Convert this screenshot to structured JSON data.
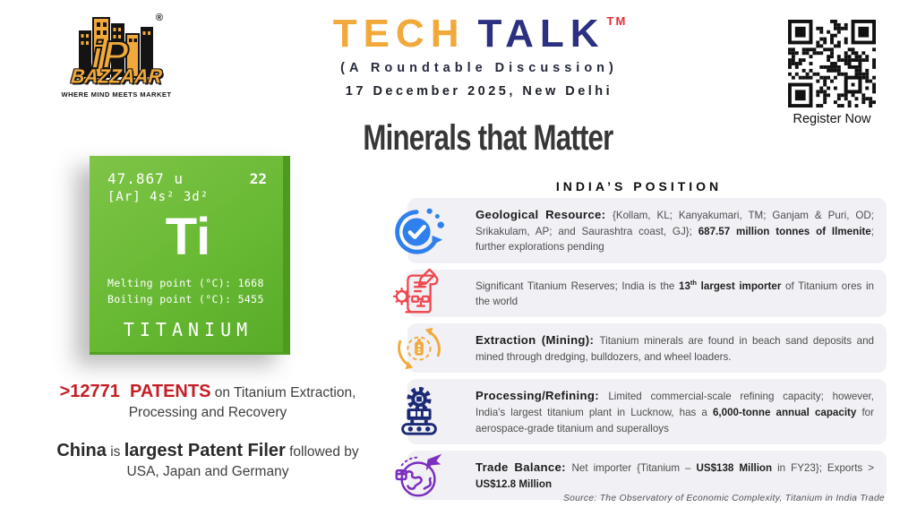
{
  "brand": {
    "prefix": "iP",
    "name": "BAZZAAR",
    "tagline": "WHERE MIND MEETS MARKET",
    "registered": "®"
  },
  "header": {
    "title_word1": "TECH",
    "title_word2": "TALK",
    "trademark": "TM",
    "subtitle": "(A Roundtable Discussion)",
    "dateline": "17 December 2025, New Delhi"
  },
  "register": {
    "label": "Register Now"
  },
  "page_title": "Minerals that Matter",
  "element_card": {
    "atomic_mass": "47.867 u",
    "atomic_number": "22",
    "electron_config": "[Ar] 4s² 3d²",
    "symbol": "Ti",
    "melting_point": "Melting point (°C): 1668",
    "boiling_point": "Boiling point (°C): 5455",
    "name": "TITANIUM"
  },
  "patents": {
    "line1": [
      {
        "t": ">12771  PATENTS",
        "b": true,
        "big": true,
        "red": true
      },
      {
        "t": " on Titanium Extraction,"
      }
    ],
    "line2": "Processing and Recovery",
    "filer1": [
      {
        "t": "China",
        "b": true,
        "big": true
      },
      {
        "t": " is "
      },
      {
        "t": "largest Patent Filer",
        "b": true,
        "big": true
      },
      {
        "t": " followed by"
      }
    ],
    "filer2": "USA, Japan and Germany"
  },
  "position": {
    "heading": "INDIA’S POSITION",
    "rows": [
      {
        "icon": "check-circle",
        "color": "#2F80ED",
        "segments": [
          {
            "t": "Geological Resource: ",
            "lead": true
          },
          {
            "t": "{Kollam, KL; Kanyakumari, TM; Ganjam & Puri, OD; Srikakulam, AP; and Saurashtra coast, GJ}; "
          },
          {
            "t": "687.57 million tonnes of Ilmenite",
            "b": true
          },
          {
            "t": "; further explorations pending"
          }
        ]
      },
      {
        "icon": "patent-scroll",
        "color": "#F0484F",
        "segments": [
          {
            "t": "Significant Titanium Reserves; India is the "
          },
          {
            "t": "13",
            "b": true
          },
          {
            "t": "th",
            "b": true,
            "sup": true
          },
          {
            "t": " largest importer",
            "b": true
          },
          {
            "t": " of Titanium ores in the world"
          }
        ]
      },
      {
        "icon": "mining-cycle",
        "color": "#F2A93B",
        "segments": [
          {
            "t": "Extraction (Mining): ",
            "lead": true
          },
          {
            "t": "Titanium minerals are found in beach sand deposits and mined through dredging, bulldozers, and wheel loaders."
          }
        ]
      },
      {
        "icon": "factory",
        "color": "#1B2A75",
        "segments": [
          {
            "t": "Processing/Refining: ",
            "lead": true
          },
          {
            "t": "Limited commercial-scale refining capacity; however, India's largest titanium plant in Lucknow, has a "
          },
          {
            "t": "6,000-tonne annual capacity",
            "b": true
          },
          {
            "t": " for aerospace-grade titanium and superalloys"
          }
        ]
      },
      {
        "icon": "globe-trade",
        "color": "#7B2FBE",
        "segments": [
          {
            "t": "Trade Balance: ",
            "lead": true
          },
          {
            "t": "Net importer {Titanium – "
          },
          {
            "t": "US$138 Million",
            "b": true
          },
          {
            "t": " in FY23}; Exports > "
          },
          {
            "t": "US$12.8 Million",
            "b": true
          }
        ]
      }
    ]
  },
  "source": "Source: The Observatory of Economic Complexity, Titanium in India Trade",
  "colors": {
    "brand_yellow": "#F2A93B",
    "brand_navy": "#2B3081",
    "trademark_red": "#E82C3A",
    "patents_red": "#C41E25",
    "card_green": "#68B934",
    "row_background": "#F1F0F5",
    "icon_blue": "#2F80ED",
    "icon_red": "#F0484F",
    "icon_orange": "#F2A93B",
    "icon_navy": "#1B2A75",
    "icon_purple": "#7B2FBE"
  }
}
